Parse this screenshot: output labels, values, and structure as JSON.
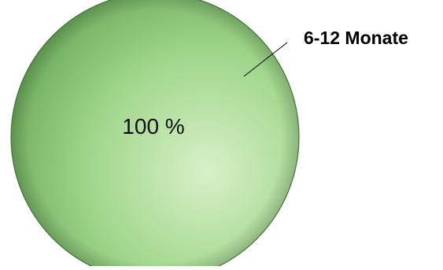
{
  "chart_data": {
    "type": "pie",
    "title": "",
    "slices": [
      {
        "label": "6-12 Monate",
        "value": 100,
        "value_label": "100 %"
      }
    ],
    "colors": {
      "slice_light": "#d8f0c8",
      "slice_mid": "#9fd68a",
      "slice_dark": "#6aa85a",
      "edge": "#4f7f45",
      "leader": "#000000"
    },
    "legend": "none"
  }
}
